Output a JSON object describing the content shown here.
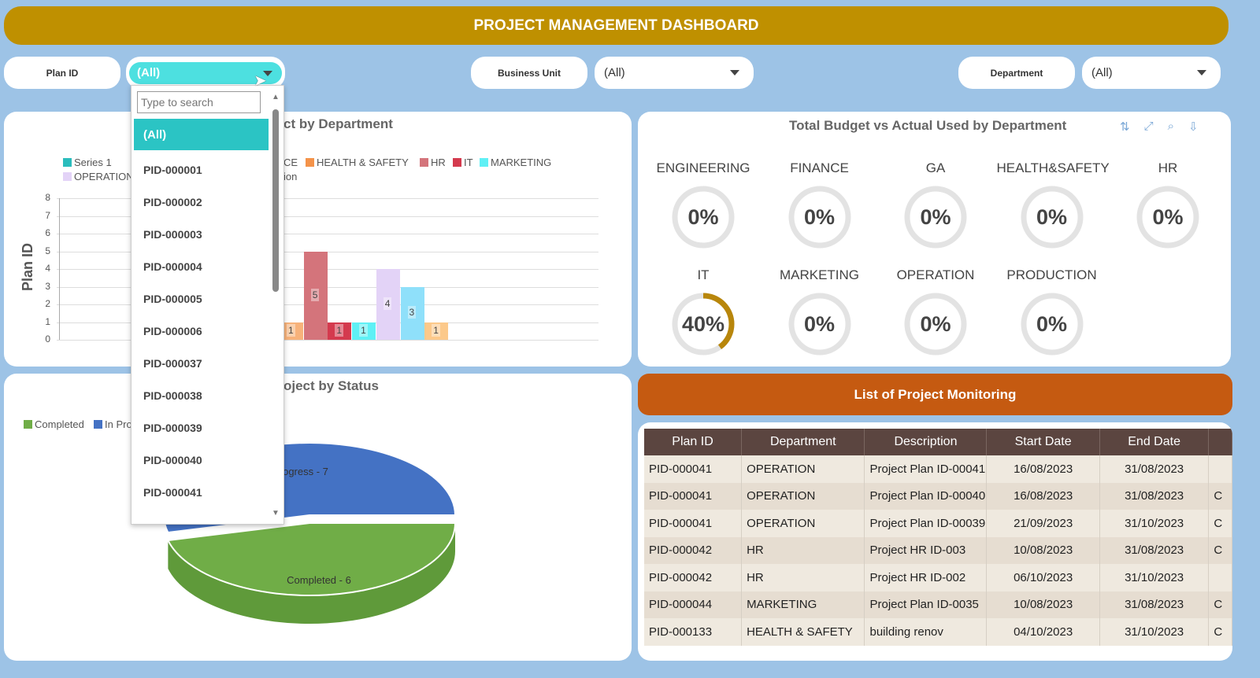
{
  "header": {
    "title": "PROJECT MANAGEMENT DASHBOARD"
  },
  "filters": {
    "plan_id": {
      "label": "Plan ID",
      "value": "(All)"
    },
    "business_unit": {
      "label": "Business Unit",
      "value": "(All)"
    },
    "department": {
      "label": "Department",
      "value": "(All)"
    }
  },
  "dropdown": {
    "search_placeholder": "Type to search",
    "selected": "(All)",
    "items": [
      "PID-000001",
      "PID-000002",
      "PID-000003",
      "PID-000004",
      "PID-000005",
      "PID-000006",
      "PID-000037",
      "PID-000038",
      "PID-000039",
      "PID-000040",
      "PID-000041"
    ]
  },
  "bar_panel": {
    "title_visible": "ct by Department",
    "legend": [
      {
        "label": "Series 1",
        "color": "#2bbdbd"
      },
      {
        "label": "OPERATION",
        "color": "#e3d3f7"
      },
      {
        "label": "CE",
        "color": ""
      },
      {
        "label": "HEALTH & SAFETY",
        "color": "#f4934a"
      },
      {
        "label": "HR",
        "color": "#d4747b"
      },
      {
        "label": "IT",
        "color": "#d43a4e"
      },
      {
        "label": "MARKETING",
        "color": "#5ff0f5"
      },
      {
        "label": "ion",
        "color": ""
      }
    ]
  },
  "chart_data": [
    {
      "type": "bar",
      "ylabel": "Plan ID",
      "ylim": [
        0,
        8
      ],
      "yticks": [
        0,
        1,
        2,
        3,
        4,
        5,
        6,
        7,
        8
      ],
      "grid": true,
      "legend_position": "top-left",
      "values": [
        1,
        5,
        1,
        1,
        4,
        3,
        1
      ],
      "colors": [
        "#f7b27a",
        "#d4747b",
        "#d43a4e",
        "#5ff0f5",
        "#e3d3f7",
        "#8fe0fa",
        "#fcc98a"
      ]
    },
    {
      "type": "pie",
      "title_visible": "oject by Status",
      "legend": [
        {
          "label": "Completed",
          "color": "#70ad47"
        },
        {
          "label": "In Pro",
          "color": "#4472c4"
        }
      ],
      "slices": [
        {
          "label": "Completed - 6",
          "value": 6,
          "color": "#70ad47"
        },
        {
          "label": "ogress - 7",
          "value": 7,
          "color": "#4472c4"
        }
      ]
    }
  ],
  "budget_panel": {
    "title": "Total Budget vs Actual Used by Department",
    "icons": [
      "sort-icon",
      "expand-icon",
      "filter-icon",
      "export-icon"
    ],
    "gauges": [
      {
        "name": "ENGINEERING",
        "value": "0%",
        "pct": 0
      },
      {
        "name": "FINANCE",
        "value": "0%",
        "pct": 0
      },
      {
        "name": "GA",
        "value": "0%",
        "pct": 0
      },
      {
        "name": "HEALTH&SAFETY",
        "value": "0%",
        "pct": 0
      },
      {
        "name": "HR",
        "value": "0%",
        "pct": 0
      },
      {
        "name": "IT",
        "value": "40%",
        "pct": 40
      },
      {
        "name": "MARKETING",
        "value": "0%",
        "pct": 0
      },
      {
        "name": "OPERATION",
        "value": "0%",
        "pct": 0
      },
      {
        "name": "PRODUCTION",
        "value": "0%",
        "pct": 0
      }
    ],
    "accent": "#b8860b"
  },
  "monitoring": {
    "title": "List of Project Monitoring",
    "columns": [
      "Plan ID",
      "Department",
      "Description",
      "Start Date",
      "End Date",
      ""
    ],
    "rows": [
      [
        "PID-000041",
        "OPERATION",
        "Project Plan ID-00041",
        "16/08/2023",
        "31/08/2023",
        ""
      ],
      [
        "PID-000041",
        "OPERATION",
        "Project Plan ID-00040",
        "16/08/2023",
        "31/08/2023",
        "C"
      ],
      [
        "PID-000041",
        "OPERATION",
        "Project Plan ID-00039",
        "21/09/2023",
        "31/10/2023",
        "C"
      ],
      [
        "PID-000042",
        "HR",
        "Project HR ID-003",
        "10/08/2023",
        "31/08/2023",
        "C"
      ],
      [
        "PID-000042",
        "HR",
        "Project HR ID-002",
        "06/10/2023",
        "31/10/2023",
        ""
      ],
      [
        "PID-000044",
        "MARKETING",
        "Project Plan ID-0035",
        "10/08/2023",
        "31/08/2023",
        "C"
      ],
      [
        "PID-000133",
        "HEALTH & SAFETY",
        "building renov",
        "04/10/2023",
        "31/10/2023",
        "C"
      ]
    ]
  }
}
